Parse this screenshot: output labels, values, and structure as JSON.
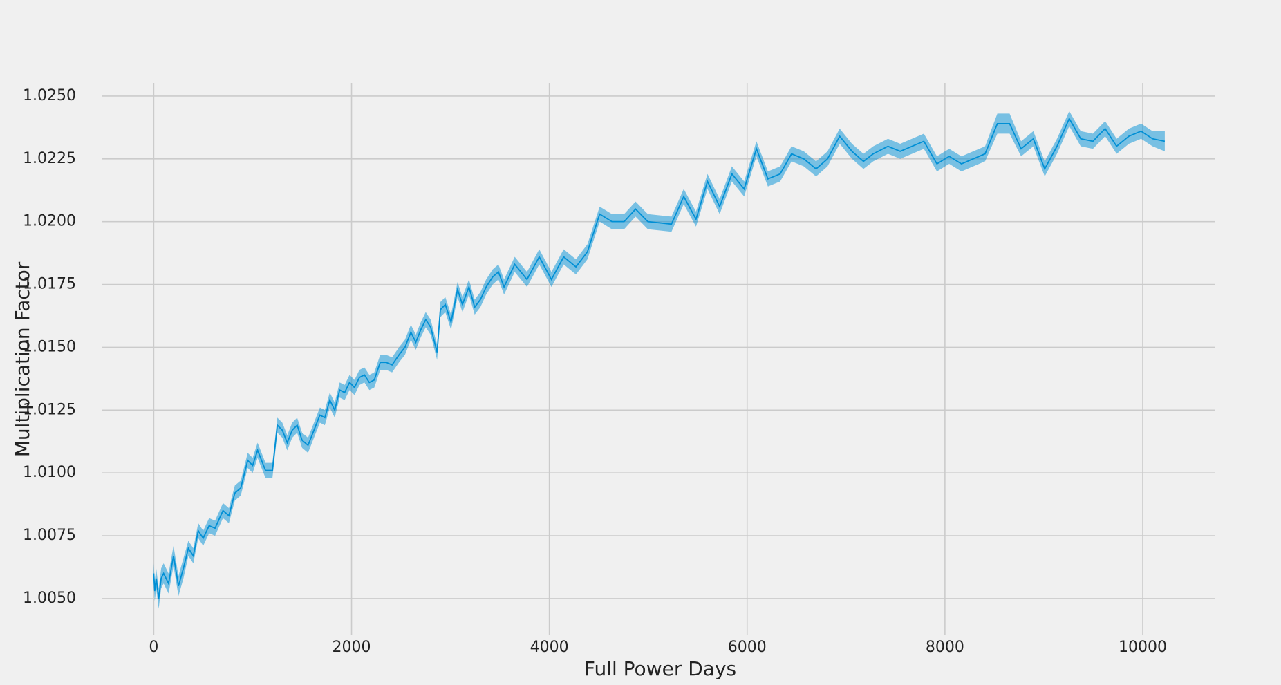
{
  "chart_data": {
    "type": "line",
    "xlabel": "Full Power Days",
    "ylabel": "Multiplication Factor",
    "color": "#008fd5",
    "band_color": "#008fd5",
    "x": [
      0,
      10,
      25,
      50,
      75,
      100,
      150,
      200,
      250,
      300,
      350,
      400,
      450,
      500,
      560,
      620,
      700,
      760,
      820,
      880,
      950,
      1000,
      1050,
      1130,
      1200,
      1250,
      1300,
      1350,
      1400,
      1450,
      1500,
      1560,
      1620,
      1680,
      1730,
      1780,
      1830,
      1880,
      1930,
      1980,
      2030,
      2080,
      2130,
      2180,
      2230,
      2290,
      2350,
      2410,
      2480,
      2540,
      2600,
      2650,
      2700,
      2750,
      2800,
      2865,
      2898,
      2948,
      3006,
      3072,
      3121,
      3187,
      3245,
      3303,
      3361,
      3427,
      3485,
      3542,
      3650,
      3774,
      3898,
      4021,
      4145,
      4269,
      4385,
      4509,
      4633,
      4756,
      4872,
      4996,
      5235,
      5359,
      5483,
      5599,
      5722,
      5846,
      5970,
      6094,
      6210,
      6334,
      6449,
      6573,
      6697,
      6813,
      6936,
      7060,
      7176,
      7275,
      7424,
      7548,
      7787,
      7919,
      8043,
      8167,
      8406,
      8530,
      8654,
      8770,
      8894,
      9009,
      9133,
      9257,
      9373,
      9496,
      9620,
      9736,
      9860,
      9983,
      10099,
      10223
    ],
    "values": [
      1.006,
      1.0053,
      1.0058,
      1.005,
      1.0058,
      1.006,
      1.0056,
      1.0067,
      1.0055,
      1.0062,
      1.007,
      1.0067,
      1.0077,
      1.0074,
      1.0079,
      1.0078,
      1.0085,
      1.0083,
      1.0092,
      1.0094,
      1.0105,
      1.0103,
      1.0109,
      1.0101,
      1.0101,
      1.0119,
      1.0117,
      1.0112,
      1.0117,
      1.0119,
      1.0113,
      1.0111,
      1.0117,
      1.0123,
      1.0122,
      1.0129,
      1.0125,
      1.0133,
      1.0132,
      1.0136,
      1.0134,
      1.0138,
      1.0139,
      1.0136,
      1.0137,
      1.0144,
      1.0144,
      1.0143,
      1.0147,
      1.015,
      1.0156,
      1.0152,
      1.0157,
      1.0161,
      1.0158,
      1.0148,
      1.0165,
      1.0167,
      1.016,
      1.0173,
      1.0167,
      1.0174,
      1.0166,
      1.0169,
      1.0174,
      1.0178,
      1.018,
      1.0174,
      1.0183,
      1.0177,
      1.0186,
      1.0177,
      1.0186,
      1.0182,
      1.0188,
      1.0203,
      1.02,
      1.02,
      1.0205,
      1.02,
      1.0199,
      1.021,
      1.0201,
      1.0216,
      1.0206,
      1.0219,
      1.0213,
      1.0229,
      1.0217,
      1.0219,
      1.0227,
      1.0225,
      1.0221,
      1.0225,
      1.0234,
      1.0228,
      1.0224,
      1.0227,
      1.023,
      1.0228,
      1.0232,
      1.0223,
      1.0226,
      1.0223,
      1.0227,
      1.0239,
      1.0239,
      1.0229,
      1.0233,
      1.0221,
      1.023,
      1.0241,
      1.0233,
      1.0232,
      1.0237,
      1.023,
      1.0234,
      1.0236,
      1.0233,
      1.0232
    ],
    "errors": [
      0.0004,
      0.0004,
      0.0004,
      0.0004,
      0.0004,
      0.0004,
      0.0004,
      0.0004,
      0.0004,
      0.0004,
      0.0003,
      0.0003,
      0.0003,
      0.0003,
      0.0003,
      0.0003,
      0.0003,
      0.0003,
      0.0003,
      0.0003,
      0.0003,
      0.0003,
      0.0003,
      0.0003,
      0.0003,
      0.0003,
      0.0003,
      0.0003,
      0.0003,
      0.0003,
      0.0003,
      0.0003,
      0.0003,
      0.0003,
      0.0003,
      0.0003,
      0.0003,
      0.0003,
      0.0003,
      0.0003,
      0.0003,
      0.0003,
      0.0003,
      0.0003,
      0.0003,
      0.0003,
      0.0003,
      0.0003,
      0.0003,
      0.0003,
      0.0003,
      0.0003,
      0.0003,
      0.0003,
      0.0003,
      0.0003,
      0.0003,
      0.0003,
      0.0003,
      0.0003,
      0.0003,
      0.0003,
      0.0003,
      0.0003,
      0.0003,
      0.0003,
      0.0003,
      0.0003,
      0.0003,
      0.0003,
      0.0003,
      0.0003,
      0.0003,
      0.0003,
      0.0003,
      0.0003,
      0.0003,
      0.0003,
      0.0003,
      0.0003,
      0.0003,
      0.0003,
      0.0003,
      0.0003,
      0.0003,
      0.0003,
      0.0003,
      0.0003,
      0.0003,
      0.0003,
      0.0003,
      0.0003,
      0.0003,
      0.0003,
      0.0003,
      0.0003,
      0.0003,
      0.0003,
      0.0003,
      0.0003,
      0.0003,
      0.0003,
      0.0003,
      0.0003,
      0.0003,
      0.0004,
      0.0004,
      0.0003,
      0.0003,
      0.0003,
      0.0003,
      0.0003,
      0.0003,
      0.0003,
      0.0003,
      0.0003,
      0.0003,
      0.0003,
      0.0003,
      0.0004
    ],
    "xlim": [
      -520,
      10727
    ],
    "ylim": [
      1.00354,
      1.02552
    ],
    "xticks": [
      0,
      2000,
      4000,
      6000,
      8000,
      10000
    ],
    "yticks": [
      {
        "value": 1.005,
        "label": "1.0050"
      },
      {
        "value": 1.0075,
        "label": "1.0075"
      },
      {
        "value": 1.01,
        "label": "1.0100"
      },
      {
        "value": 1.0125,
        "label": "1.0125"
      },
      {
        "value": 1.015,
        "label": "1.0150"
      },
      {
        "value": 1.0175,
        "label": "1.0175"
      },
      {
        "value": 1.02,
        "label": "1.0200"
      },
      {
        "value": 1.0225,
        "label": "1.0225"
      },
      {
        "value": 1.025,
        "label": "1.0250"
      }
    ],
    "grid": true
  }
}
